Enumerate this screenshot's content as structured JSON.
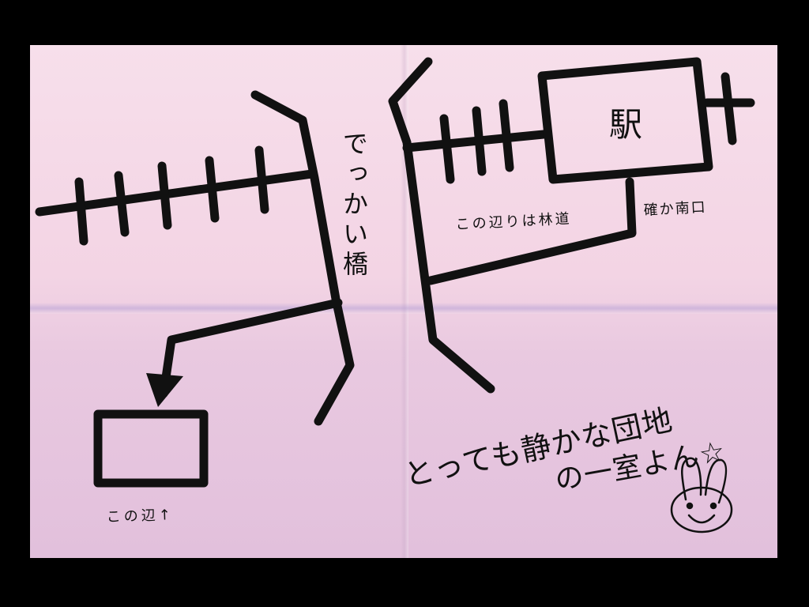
{
  "map": {
    "labels": {
      "big_bridge": "でっかい橋",
      "station": "駅",
      "forest_road": "この辺りは林道",
      "south_exit": "確か南口",
      "around_here": "この辺↑",
      "quiet_line1": "とっても静かな団地",
      "quiet_line2": "の一室よん☆"
    }
  },
  "colors": {
    "paper": "#f3d4e4",
    "ink": "#111111",
    "frame": "#000000"
  },
  "icons": {
    "bunny": "bunny-face-icon",
    "arrow": "arrow-down-icon"
  }
}
